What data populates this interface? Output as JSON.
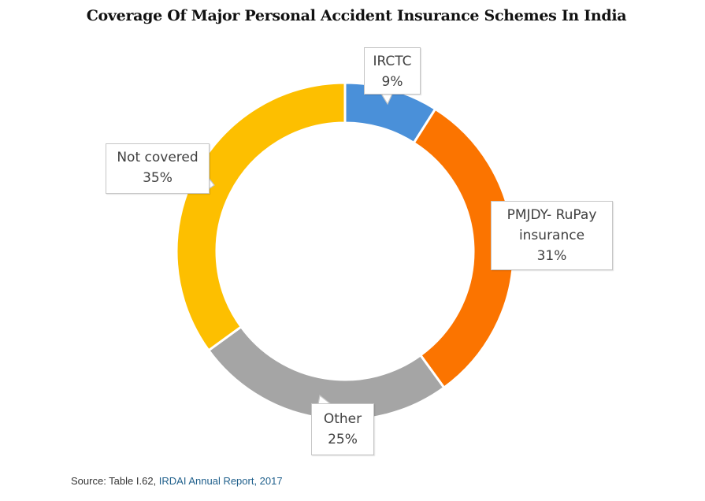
{
  "chart_data": {
    "type": "pie",
    "variant": "donut",
    "title": "Coverage Of Major Personal Accident Insurance Schemes In India",
    "categories": [
      "IRCTC",
      "PMJDY- RuPay insurance",
      "Other",
      "Not covered"
    ],
    "values": [
      9,
      31,
      25,
      35
    ],
    "unit": "%",
    "colors": [
      "#4a90d9",
      "#fb7400",
      "#a5a5a5",
      "#fdbf00"
    ],
    "start_angle_deg": 0,
    "direction": "clockwise",
    "legend": "none (data callout labels)",
    "labels": [
      {
        "lines": [
          "IRCTC",
          "9%"
        ]
      },
      {
        "lines": [
          "PMJDY- RuPay",
          "insurance",
          "31%"
        ]
      },
      {
        "lines": [
          "Other",
          "25%"
        ]
      },
      {
        "lines": [
          "Not covered",
          "35%"
        ]
      }
    ]
  },
  "title": "Coverage Of Major Personal Accident Insurance Schemes In India",
  "source": {
    "prefix": "Source: Table I.62, ",
    "link_text": "IRDAI Annual Report, 2017"
  }
}
